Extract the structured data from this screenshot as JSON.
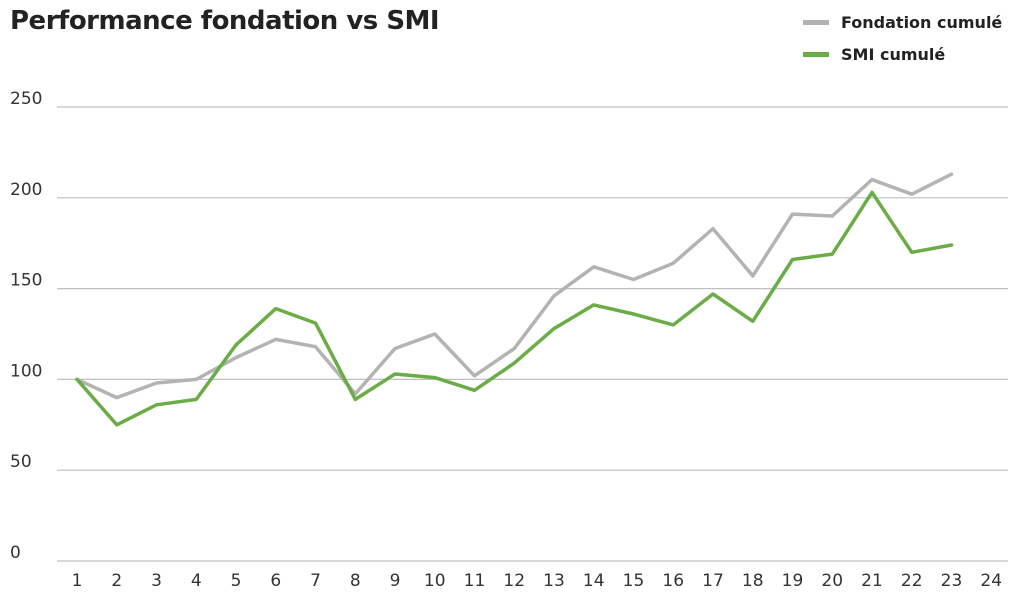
{
  "chart_data": {
    "type": "line",
    "title": "Performance fondation vs SMI",
    "xlabel": "",
    "ylabel": "",
    "x": [
      "1",
      "2",
      "3",
      "4",
      "5",
      "6",
      "7",
      "8",
      "9",
      "10",
      "11",
      "12",
      "13",
      "14",
      "15",
      "16",
      "17",
      "18",
      "19",
      "20",
      "21",
      "22",
      "23",
      "24"
    ],
    "ylim": [
      0,
      250
    ],
    "yticks": [
      "0",
      "50",
      "100",
      "150",
      "200",
      "250"
    ],
    "grid": true,
    "legend_position": "top-right",
    "series": [
      {
        "name": "Fondation cumulé",
        "color": "#b3b3b3",
        "values": [
          100,
          90,
          98,
          100,
          112,
          122,
          118,
          92,
          117,
          125,
          102,
          117,
          146,
          162,
          155,
          164,
          183,
          157,
          191,
          190,
          210,
          202,
          213,
          null
        ]
      },
      {
        "name": "SMI cumulé",
        "color": "#6aac46",
        "values": [
          100,
          75,
          86,
          89,
          119,
          139,
          131,
          89,
          103,
          101,
          94,
          109,
          128,
          141,
          136,
          130,
          147,
          132,
          166,
          169,
          203,
          170,
          174,
          null
        ]
      }
    ]
  }
}
